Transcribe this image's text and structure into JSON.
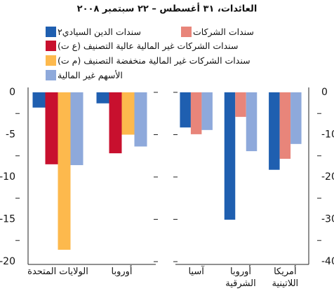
{
  "title": "العائدات، ٣١ أغسطس – ٢٢ سبتمبر ٢٠٠٨",
  "chart_data": [
    {
      "type": "bar",
      "categories": [
        "الولايات المتحدة",
        "أوروبا"
      ],
      "series": [
        {
          "name": "سندات الدين السيادي٢",
          "color": "#1f5fb0",
          "values": [
            -1.8,
            -1.3
          ]
        },
        {
          "name": "سندات الشركات غير المالية عالية التصنيف (ع ت)",
          "color": "#c8102e",
          "values": [
            -8.5,
            -7.2
          ]
        },
        {
          "name": "سندات الشركات غير المالية منخفضة التصنيف (م ت)",
          "color": "#fdb94d",
          "values": [
            -18.6,
            -5
          ]
        },
        {
          "name": "الأسهم غير المالية",
          "color": "#8ea9db",
          "values": [
            -8.6,
            -6.4
          ]
        }
      ],
      "ylim": [
        -20,
        0
      ],
      "yticks": [
        0,
        -5,
        -10,
        -15,
        -20
      ],
      "yticks_minor": [
        -2.5,
        -7.5,
        -12.5,
        -17.5
      ],
      "axis_side": "left"
    },
    {
      "type": "bar",
      "categories": [
        "آسيا",
        "أوروبا الشرقية",
        "أمريكا اللاتينية"
      ],
      "series": [
        {
          "name": "سندات الدين السيادي٢",
          "color": "#1f5fb0",
          "values": [
            -8.3,
            -30.1,
            -18.3
          ]
        },
        {
          "name": "سندات الشركات",
          "color": "#e8857a",
          "values": [
            -9.9,
            -5.8,
            -15.7
          ]
        },
        {
          "name": "الأسهم غير المالية",
          "color": "#8ea9db",
          "values": [
            -8.9,
            -13.9,
            -12.2
          ]
        }
      ],
      "ylim": [
        -40,
        0
      ],
      "yticks": [
        0,
        -10,
        -20,
        -30,
        -40
      ],
      "yticks_minor": [
        -5,
        -15,
        -25,
        -35
      ],
      "axis_side": "right"
    }
  ]
}
